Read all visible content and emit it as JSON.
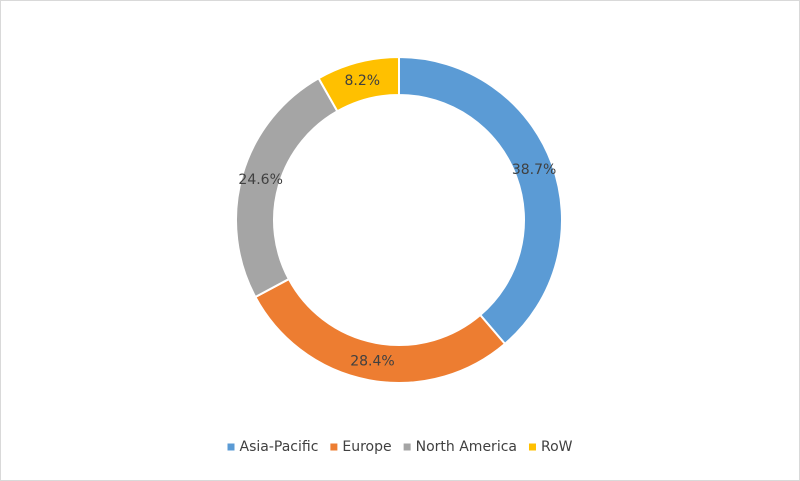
{
  "chart_data": {
    "type": "donut",
    "categories": [
      "Asia-Pacific",
      "Europe",
      "North America",
      "RoW"
    ],
    "values": [
      38.7,
      28.4,
      24.6,
      8.2
    ],
    "value_labels": [
      "38.7%",
      "28.4%",
      "24.6%",
      "8.2%"
    ],
    "colors": [
      "#5b9bd5",
      "#ed7d31",
      "#a5a5a5",
      "#ffc000"
    ],
    "legend": "bottom"
  }
}
